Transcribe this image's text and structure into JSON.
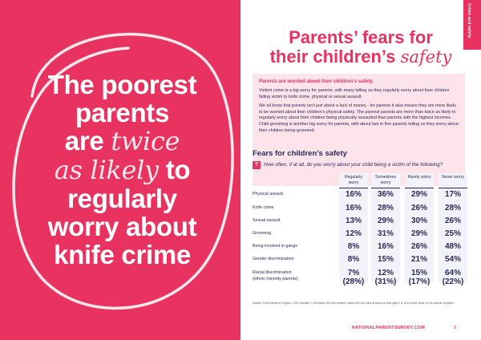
{
  "left": {
    "quote_line1": "The poorest",
    "quote_line2": "parents",
    "quote_line3_a": "are ",
    "quote_line3_b": "twice",
    "quote_line4_a": "as likely",
    "quote_line4_b": " to",
    "quote_line5": "regularly",
    "quote_line6": "worry about",
    "quote_line7": "knife crime"
  },
  "side_tab": "Crime and safety",
  "title": {
    "line1": "Parents’ fears for",
    "line2_a": "their children’s ",
    "line2_b": "safety"
  },
  "intro": {
    "heading": "Parents are worried about their children’s safety.",
    "para1": "Violent crime is a big worry for parents, with many telling us they regularly worry about their children falling victim to knife crime, physical or sexual assault.",
    "para2": "We all know that poverty isn’t just about a lack of money - for parents it also means they are more likely to be worried about their children’s physical safety. The poorest parents are more than twice as likely to regularly worry about their children being physically assaulted than parents with the highest incomes. Child grooming is another big worry for parents, with about two in five parents telling us they worry about their children being groomed."
  },
  "fears": {
    "title": "Fears for children’s safety",
    "question_icon": "?",
    "question": "How often, if at all, do you worry about your child being a victim of the following?",
    "columns": [
      "Regularly worry",
      "Sometimes worry",
      "Rarely worry",
      "Never worry"
    ],
    "rows": [
      {
        "label": "Physical assault",
        "values": [
          "16%",
          "36%",
          "29%",
          "17%"
        ]
      },
      {
        "label": "Knife crime",
        "values": [
          "16%",
          "28%",
          "26%",
          "28%"
        ]
      },
      {
        "label": "Sexual assault",
        "values": [
          "13%",
          "29%",
          "30%",
          "26%"
        ]
      },
      {
        "label": "Grooming",
        "values": [
          "12%",
          "31%",
          "29%",
          "25%"
        ]
      },
      {
        "label": "Being involved in gangs",
        "values": [
          "8%",
          "16%",
          "26%",
          "48%"
        ]
      },
      {
        "label": "Gender discrimination",
        "values": [
          "8%",
          "15%",
          "21%",
          "54%"
        ]
      },
      {
        "label": "Racial discrimination",
        "sublabel": "(ethnic minority parents)",
        "values": [
          "7%",
          "12%",
          "15%",
          "64%"
        ],
        "subvalues": [
          "(28%)",
          "(31%)",
          "(17%)",
          "(22%)"
        ]
      }
    ]
  },
  "sample_note": "Sample: 9,949 parents in England, 3,391 Scotland, 1,008 Wales, 800 and Northern Ireland 300 who have at least one child aged 0 to 18 in school. Base: All UK parents, weighted.",
  "footer": {
    "url": "NATIONALPARENTSURVEY.COM",
    "page": "8"
  },
  "colors": {
    "brand_pink": "#e8325f",
    "navy": "#2b2a5a",
    "light_pink": "#fde4ea"
  }
}
